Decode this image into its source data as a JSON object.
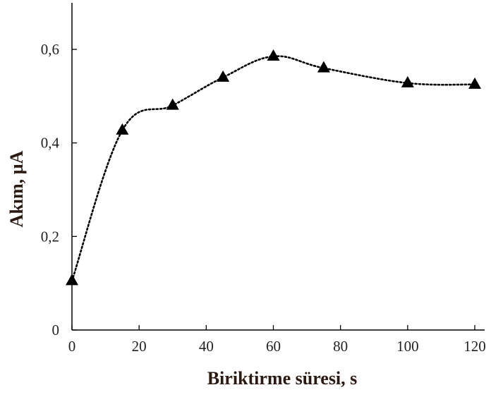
{
  "chart_data": {
    "type": "line",
    "xlabel": "Biriktirme  süresi, s",
    "ylabel": "Akım, µA",
    "xlim": [
      0,
      120
    ],
    "ylim": [
      0,
      0.6
    ],
    "x_ticks": [
      0,
      20,
      40,
      60,
      80,
      100,
      120
    ],
    "x_tick_labels": [
      "0",
      "20",
      "40",
      "60",
      "80",
      "100",
      "120"
    ],
    "y_ticks": [
      0,
      0.2,
      0.4,
      0.6
    ],
    "y_tick_labels": [
      "0",
      "0,2",
      "0,4",
      "0,6"
    ],
    "grid": false,
    "legend": "none",
    "series": [
      {
        "marker": "triangle",
        "line_style": "dotted",
        "color": "#000000",
        "x": [
          0,
          15,
          30,
          45,
          60,
          75,
          100,
          120
        ],
        "y": [
          0.105,
          0.427,
          0.48,
          0.54,
          0.585,
          0.56,
          0.528,
          0.525
        ]
      }
    ]
  }
}
